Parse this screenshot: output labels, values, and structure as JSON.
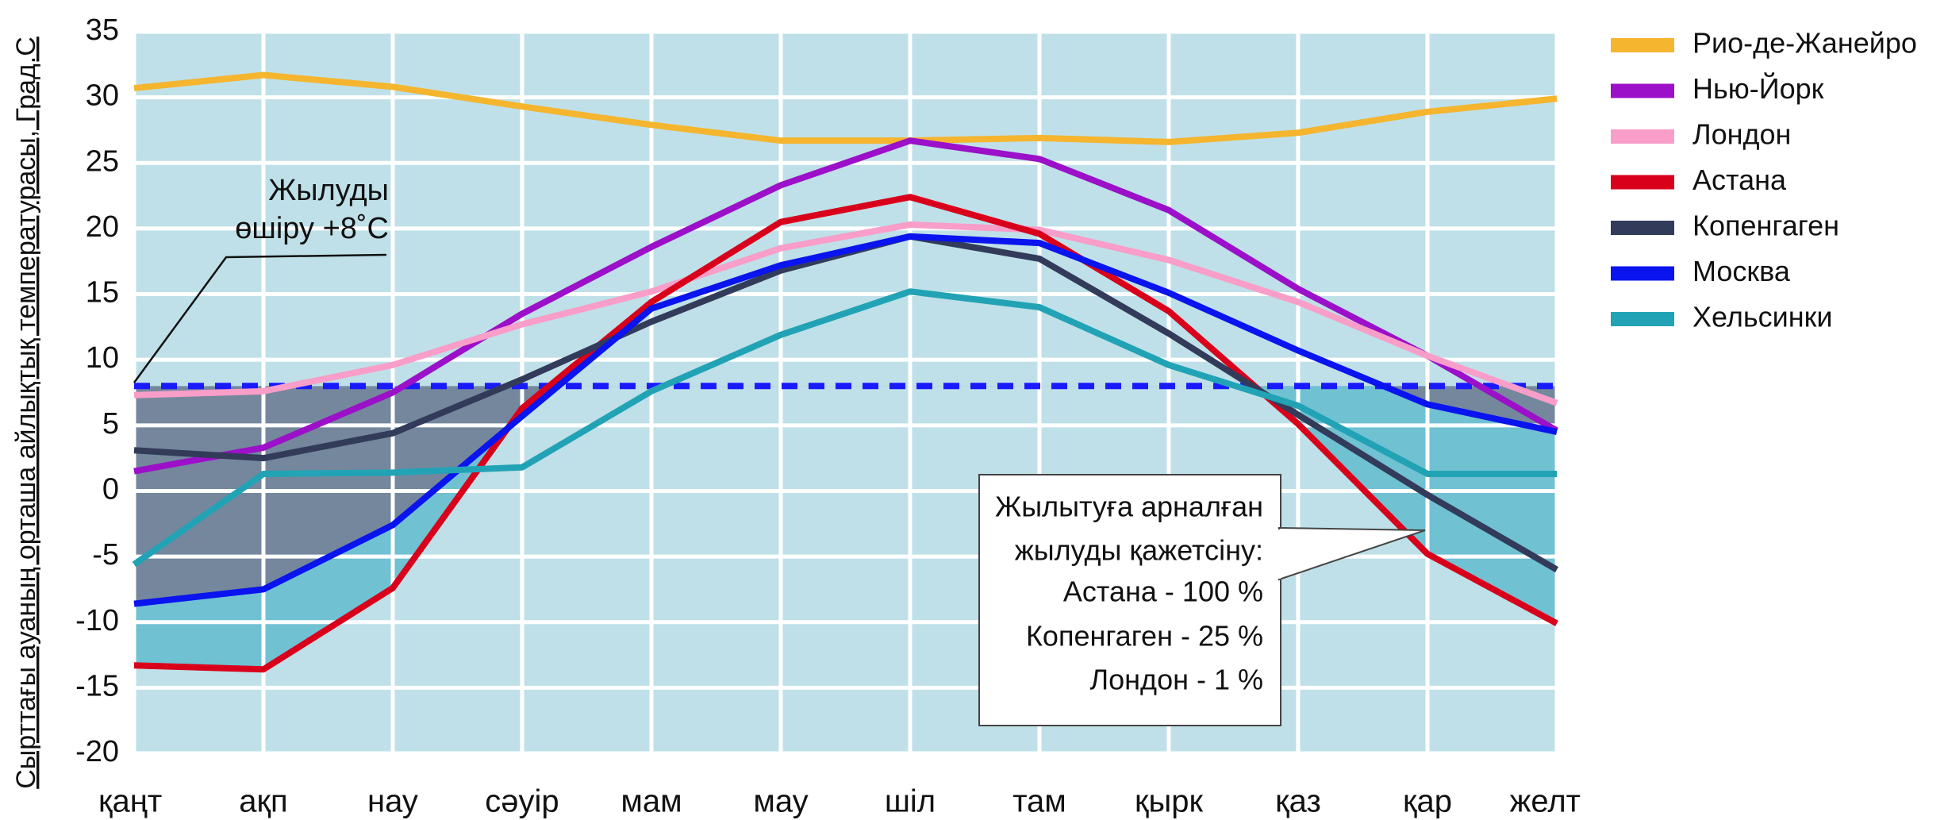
{
  "chart_data": {
    "type": "line",
    "y_axis_label": "Сырттағы ауаның орташа айлықтық температурасы, Град.С",
    "categories": [
      "қаңт",
      "ақп",
      "нау",
      "сәуір",
      "мам",
      "мау",
      "шіл",
      "там",
      "қырк",
      "қаз",
      "қар",
      "желт"
    ],
    "ylim": [
      -20,
      35
    ],
    "yticks": [
      -20,
      -15,
      -10,
      -5,
      0,
      5,
      10,
      15,
      20,
      25,
      30,
      35
    ],
    "grid": true,
    "threshold": 8,
    "threshold_annotation": [
      "Жылуды",
      "өшіру +8˚С"
    ],
    "callout": [
      "Жылытуға арналған",
      "жылуды қажетсіну:",
      "Астана - 100 %",
      "Копенгаген - 25 %",
      "Лондон - 1 %"
    ],
    "legend": "right",
    "series": [
      {
        "name": "Рио-де-Жанейро",
        "color": "#f5b52e",
        "values": [
          30.7,
          31.7,
          30.8,
          29.3,
          27.9,
          26.7,
          26.7,
          26.9,
          26.6,
          27.3,
          28.9,
          29.9
        ]
      },
      {
        "name": "Нью-Йорк",
        "color": "#9b10c8",
        "values": [
          1.5,
          3.3,
          7.5,
          13.5,
          18.6,
          23.3,
          26.7,
          25.3,
          21.4,
          15.4,
          10.3,
          4.6
        ]
      },
      {
        "name": "Лондон",
        "color": "#f99dc9",
        "values": [
          7.3,
          7.6,
          9.6,
          12.7,
          15.2,
          18.5,
          20.3,
          19.9,
          17.6,
          14.4,
          10.3,
          6.7
        ]
      },
      {
        "name": "Астана",
        "color": "#d9001b",
        "values": [
          -13.3,
          -13.6,
          -7.4,
          6.3,
          14.4,
          20.5,
          22.4,
          19.6,
          13.7,
          5.1,
          -4.8,
          -10.1
        ]
      },
      {
        "name": "Копенгаген",
        "color": "#333b5a",
        "values": [
          3.1,
          2.5,
          4.4,
          8.5,
          12.9,
          16.8,
          19.4,
          17.7,
          12.0,
          5.8,
          -0.3,
          -6.0
        ]
      },
      {
        "name": "Москва",
        "color": "#0a14ee",
        "values": [
          -8.6,
          -7.5,
          -2.6,
          5.7,
          13.9,
          17.2,
          19.4,
          18.9,
          15.1,
          10.7,
          6.6,
          4.5
        ]
      },
      {
        "name": "Хельсинки",
        "color": "#22a3b5",
        "values": [
          -5.6,
          1.3,
          1.4,
          1.8,
          7.6,
          11.9,
          15.2,
          14.0,
          9.6,
          6.5,
          1.3,
          1.3
        ]
      }
    ]
  }
}
